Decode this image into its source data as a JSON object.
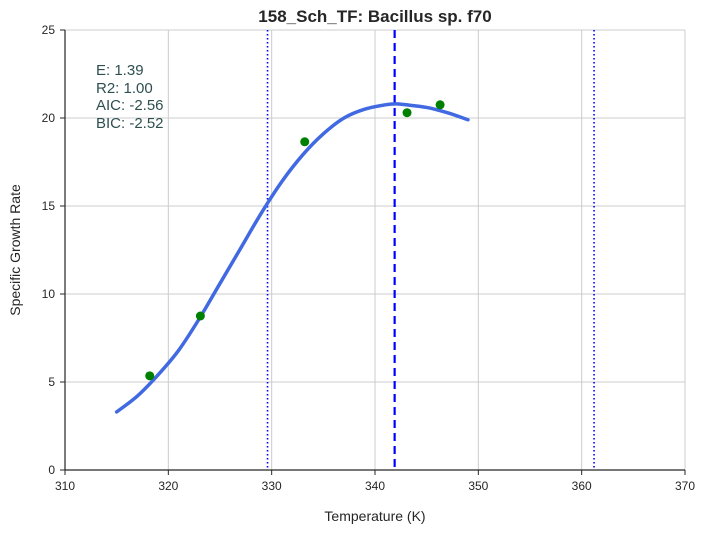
{
  "chart_data": {
    "type": "scatter",
    "title": "158_Sch_TF: Bacillus sp. f70",
    "xlabel": "Temperature (K)",
    "ylabel": "Specific Growth Rate",
    "xlim": [
      310,
      370
    ],
    "ylim": [
      0,
      25
    ],
    "xticks": [
      "310",
      "320",
      "330",
      "340",
      "350",
      "360",
      "370"
    ],
    "yticks": [
      "0",
      "5",
      "10",
      "15",
      "20",
      "25"
    ],
    "grid": true,
    "stats_lines": [
      "E:  1.39",
      "R2:  1.00",
      "AIC: -2.56",
      "BIC: -2.52"
    ],
    "points": [
      {
        "x": 318.2,
        "y": 5.35
      },
      {
        "x": 323.1,
        "y": 8.75
      },
      {
        "x": 333.2,
        "y": 18.65
      },
      {
        "x": 343.1,
        "y": 20.3
      },
      {
        "x": 346.3,
        "y": 20.75
      }
    ],
    "fit_curve": [
      {
        "x": 315.0,
        "y": 3.3
      },
      {
        "x": 317.0,
        "y": 4.2
      },
      {
        "x": 319.0,
        "y": 5.4
      },
      {
        "x": 321.0,
        "y": 6.8
      },
      {
        "x": 323.0,
        "y": 8.6
      },
      {
        "x": 325.0,
        "y": 10.6
      },
      {
        "x": 327.0,
        "y": 12.6
      },
      {
        "x": 329.0,
        "y": 14.6
      },
      {
        "x": 331.0,
        "y": 16.4
      },
      {
        "x": 333.0,
        "y": 17.9
      },
      {
        "x": 335.0,
        "y": 19.1
      },
      {
        "x": 337.0,
        "y": 20.0
      },
      {
        "x": 339.0,
        "y": 20.5
      },
      {
        "x": 341.0,
        "y": 20.75
      },
      {
        "x": 342.0,
        "y": 20.8
      },
      {
        "x": 343.0,
        "y": 20.75
      },
      {
        "x": 345.0,
        "y": 20.6
      },
      {
        "x": 347.0,
        "y": 20.3
      },
      {
        "x": 349.0,
        "y": 19.9
      }
    ],
    "vlines": [
      {
        "x": 329.6,
        "style": "dotted"
      },
      {
        "x": 341.9,
        "style": "dashed"
      },
      {
        "x": 361.2,
        "style": "dotted"
      }
    ],
    "colors": {
      "curve": "#4169e1",
      "points": "#008000",
      "vline": "#0000ff",
      "grid": "#cccccc",
      "axis": "#262626",
      "stats": "#2f4f4f"
    }
  }
}
